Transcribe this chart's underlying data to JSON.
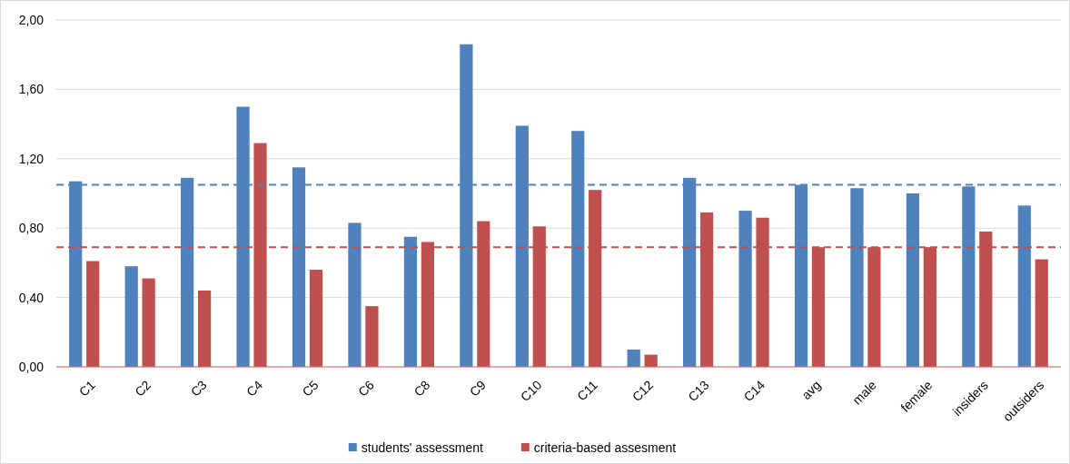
{
  "chart_data": {
    "type": "bar",
    "categories": [
      "C1",
      "C2",
      "C3",
      "C4",
      "C5",
      "C6",
      "C8",
      "C9",
      "C10",
      "C11",
      "C12",
      "C13",
      "C14",
      "avg",
      "male",
      "female",
      "insiders",
      "outsiders"
    ],
    "series": [
      {
        "name": "students' assessment",
        "color": "#4f81bd",
        "values": [
          1.07,
          0.58,
          1.09,
          1.5,
          1.15,
          0.83,
          0.75,
          1.86,
          1.39,
          1.36,
          0.1,
          1.09,
          0.9,
          1.05,
          1.03,
          1.0,
          1.04,
          0.93
        ]
      },
      {
        "name": "criteria-based assesment",
        "color": "#c0504d",
        "values": [
          0.61,
          0.51,
          0.44,
          1.29,
          0.56,
          0.35,
          0.72,
          0.84,
          0.81,
          1.02,
          0.07,
          0.89,
          0.86,
          0.69,
          0.69,
          0.69,
          0.78,
          0.62
        ]
      }
    ],
    "ylim": [
      0,
      2
    ],
    "yticks": [
      {
        "value": 0,
        "label": "0,00"
      },
      {
        "value": 0.4,
        "label": "0,40"
      },
      {
        "value": 0.8,
        "label": "0,80"
      },
      {
        "value": 1.2,
        "label": "1,20"
      },
      {
        "value": 1.6,
        "label": "1,60"
      },
      {
        "value": 2,
        "label": "2,00"
      }
    ],
    "grid": "y",
    "legend": "bottom",
    "ref_lines": [
      {
        "axis": "y",
        "value": 1.05,
        "color": "#4f81bd",
        "line_style": "dashed"
      },
      {
        "axis": "y",
        "value": 0.69,
        "color": "#c0504d",
        "line_style": "dashed"
      }
    ]
  }
}
